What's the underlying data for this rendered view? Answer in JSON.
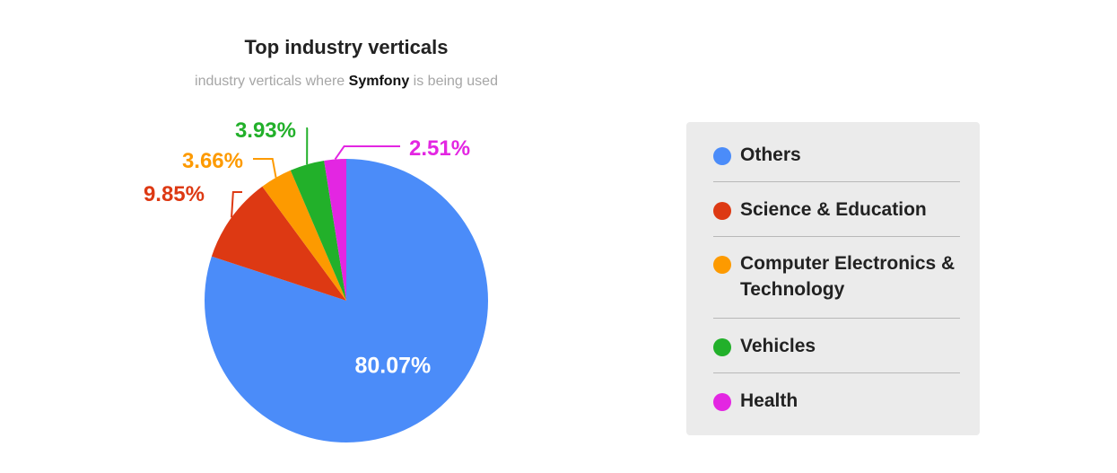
{
  "chart_data": {
    "type": "pie",
    "title": "Top industry verticals",
    "subtitle_prefix": "industry verticals where",
    "subtitle_brand": "Symfony",
    "subtitle_suffix": "is being used",
    "slices": [
      {
        "label": "Others",
        "value": 80.07,
        "display": "80.07%",
        "color": "#4b8cf9"
      },
      {
        "label": "Science & Education",
        "value": 9.85,
        "display": "9.85%",
        "color": "#dd3913"
      },
      {
        "label": "Computer Electronics & Technology",
        "value": 3.66,
        "display": "3.66%",
        "color": "#fd9a00"
      },
      {
        "label": "Vehicles",
        "value": 3.93,
        "display": "3.93%",
        "color": "#22b02a"
      },
      {
        "label": "Health",
        "value": 2.51,
        "display": "2.51%",
        "color": "#e326e2"
      }
    ],
    "legend_position": "right"
  },
  "legend": {
    "items": [
      {
        "label": "Others",
        "color": "#4b8cf9"
      },
      {
        "label": "Science & Education",
        "color": "#dd3913"
      },
      {
        "label": "Computer Electronics & Technology",
        "color": "#fd9a00"
      },
      {
        "label": "Vehicles",
        "color": "#22b02a"
      },
      {
        "label": "Health",
        "color": "#e326e2"
      }
    ]
  }
}
